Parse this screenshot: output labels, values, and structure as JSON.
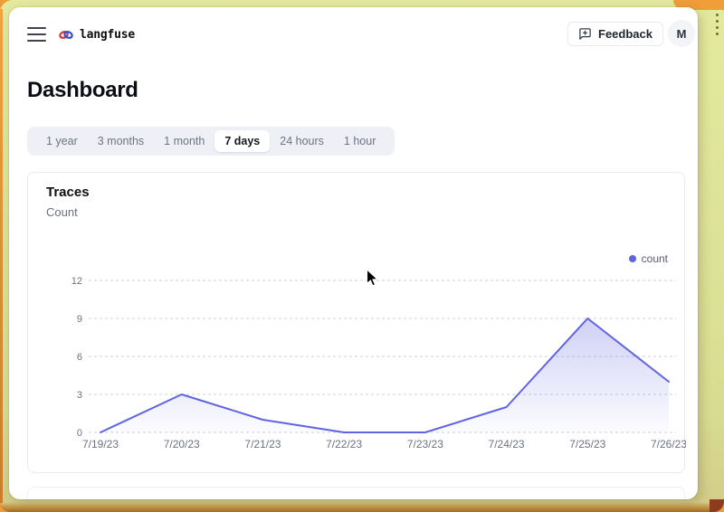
{
  "header": {
    "brand": "langfuse",
    "feedback_label": "Feedback",
    "avatar_initial": "M"
  },
  "page_title": "Dashboard",
  "tabs": {
    "items": [
      {
        "label": "1 year",
        "selected": false
      },
      {
        "label": "3 months",
        "selected": false
      },
      {
        "label": "1 month",
        "selected": false
      },
      {
        "label": "7 days",
        "selected": true
      },
      {
        "label": "24 hours",
        "selected": false
      },
      {
        "label": "1 hour",
        "selected": false
      }
    ]
  },
  "trace_card": {
    "title": "Traces",
    "subtitle": "Count",
    "legend": {
      "label": "count",
      "color": "#6064e0"
    }
  },
  "chart_data": {
    "type": "area",
    "title": "Traces",
    "categories": [
      "7/19/23",
      "7/20/23",
      "7/21/23",
      "7/22/23",
      "7/23/23",
      "7/24/23",
      "7/25/23",
      "7/26/23"
    ],
    "series": [
      {
        "name": "count",
        "values": [
          0,
          3,
          1,
          0,
          0,
          2,
          9,
          4
        ]
      }
    ],
    "ylim": [
      0,
      12
    ],
    "yticks": [
      0,
      3,
      6,
      9,
      12
    ],
    "xlabel": "",
    "ylabel": "Count",
    "grid": "dashed-horizontal",
    "legend_position": "top-right",
    "line_color": "#6064e0",
    "grid_color": "#ccd0d7",
    "axis_label_color": "#6b7280"
  }
}
